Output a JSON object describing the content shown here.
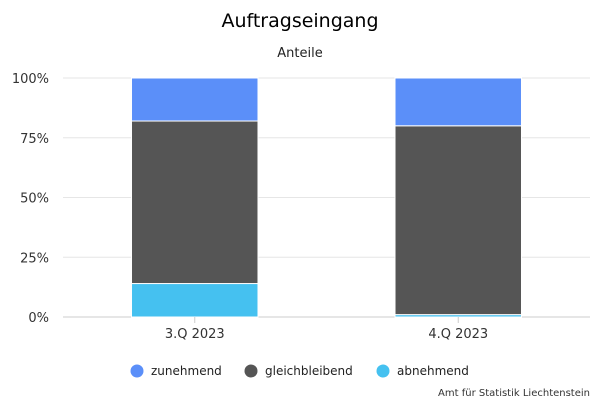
{
  "chart_data": {
    "type": "bar",
    "stacked": true,
    "title": "Auftragseingang",
    "subtitle": "Anteile",
    "categories": [
      "3.Q 2023",
      "4.Q 2023"
    ],
    "series": [
      {
        "name": "zunehmend",
        "color": "#5b8ff9",
        "values": [
          18,
          20
        ]
      },
      {
        "name": "gleichbleibend",
        "color": "#555555",
        "values": [
          68,
          79
        ]
      },
      {
        "name": "abnehmend",
        "color": "#45c1f0",
        "values": [
          14,
          1
        ]
      }
    ],
    "ylim": [
      0,
      100
    ],
    "yticks": [
      0,
      25,
      50,
      75,
      100
    ],
    "ytick_labels": [
      "0%",
      "25%",
      "50%",
      "75%",
      "100%"
    ],
    "grid": true,
    "legend_position": "bottom",
    "credit": "Amt für Statistik Liechtenstein"
  }
}
